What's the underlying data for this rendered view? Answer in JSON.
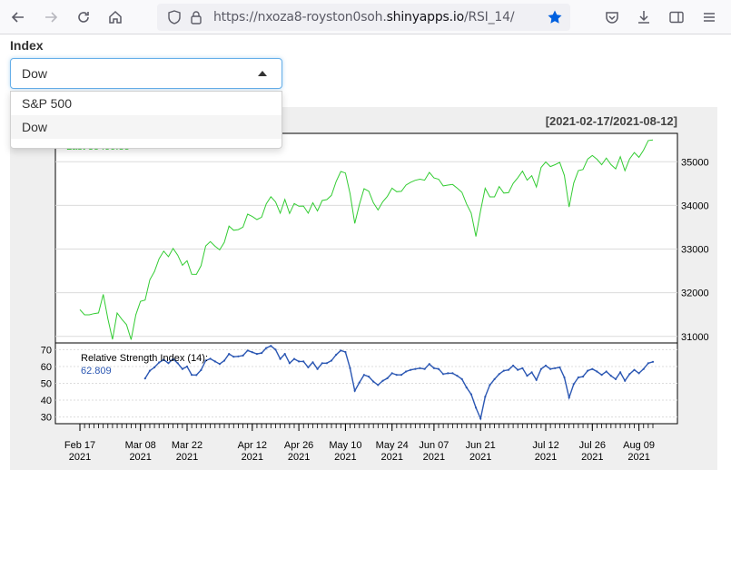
{
  "browser": {
    "url_prefix": "https://nxoza8-royston0soh.",
    "url_domain": "shinyapps.io",
    "url_path": "/RSI_14/"
  },
  "app": {
    "index_label": "Index",
    "selected": "Dow",
    "options": [
      "S&P 500",
      "Dow"
    ],
    "active_option": 1
  },
  "colors": {
    "price": "#33cc33",
    "rsi": "#2b57b3"
  },
  "chart_data": {
    "type": "line",
    "date_range_label": "[2021-02-17/2021-08-12]",
    "last_price_label": "Last 35499.85",
    "rsi_title": "Relative Strength Index (14):",
    "rsi_last": "62.809",
    "x_ticks": [
      {
        "d": "2021-02-17",
        "l1": "Feb 17",
        "l2": "2021"
      },
      {
        "d": "2021-03-08",
        "l1": "Mar 08",
        "l2": "2021"
      },
      {
        "d": "2021-03-22",
        "l1": "Mar 22",
        "l2": "2021"
      },
      {
        "d": "2021-04-12",
        "l1": "Apr 12",
        "l2": "2021"
      },
      {
        "d": "2021-04-26",
        "l1": "Apr 26",
        "l2": "2021"
      },
      {
        "d": "2021-05-10",
        "l1": "May 10",
        "l2": "2021"
      },
      {
        "d": "2021-05-24",
        "l1": "May 24",
        "l2": "2021"
      },
      {
        "d": "2021-06-07",
        "l1": "Jun 07",
        "l2": "2021"
      },
      {
        "d": "2021-06-21",
        "l1": "Jun 21",
        "l2": "2021"
      },
      {
        "d": "2021-07-12",
        "l1": "Jul 12",
        "l2": "2021"
      },
      {
        "d": "2021-07-26",
        "l1": "Jul 26",
        "l2": "2021"
      },
      {
        "d": "2021-08-09",
        "l1": "Aug 09",
        "l2": "2021"
      }
    ],
    "price_axis": {
      "ticks": [
        31000,
        32000,
        33000,
        34000,
        35000
      ],
      "ylim": [
        30850,
        35650
      ]
    },
    "rsi_axis": {
      "ticks": [
        30,
        40,
        50,
        60,
        70
      ],
      "ylim": [
        26,
        74
      ]
    },
    "price": [
      [
        "2021-02-17",
        31613
      ],
      [
        "2021-02-18",
        31494
      ],
      [
        "2021-02-19",
        31494
      ],
      [
        "2021-02-22",
        31522
      ],
      [
        "2021-02-23",
        31537
      ],
      [
        "2021-02-24",
        31962
      ],
      [
        "2021-02-25",
        31402
      ],
      [
        "2021-02-26",
        30932
      ],
      [
        "2021-03-01",
        31535
      ],
      [
        "2021-03-02",
        31392
      ],
      [
        "2021-03-03",
        31270
      ],
      [
        "2021-03-04",
        30924
      ],
      [
        "2021-03-05",
        31496
      ],
      [
        "2021-03-08",
        31802
      ],
      [
        "2021-03-09",
        31833
      ],
      [
        "2021-03-10",
        32297
      ],
      [
        "2021-03-11",
        32486
      ],
      [
        "2021-03-12",
        32779
      ],
      [
        "2021-03-15",
        32953
      ],
      [
        "2021-03-16",
        32826
      ],
      [
        "2021-03-17",
        33015
      ],
      [
        "2021-03-18",
        32862
      ],
      [
        "2021-03-19",
        32628
      ],
      [
        "2021-03-22",
        32732
      ],
      [
        "2021-03-23",
        32423
      ],
      [
        "2021-03-24",
        32420
      ],
      [
        "2021-03-25",
        32619
      ],
      [
        "2021-03-26",
        33072
      ],
      [
        "2021-03-29",
        33171
      ],
      [
        "2021-03-30",
        33066
      ],
      [
        "2021-03-31",
        32982
      ],
      [
        "2021-04-01",
        33153
      ],
      [
        "2021-04-05",
        33527
      ],
      [
        "2021-04-06",
        33430
      ],
      [
        "2021-04-07",
        33446
      ],
      [
        "2021-04-08",
        33503
      ],
      [
        "2021-04-09",
        33801
      ],
      [
        "2021-04-12",
        33746
      ],
      [
        "2021-04-13",
        33677
      ],
      [
        "2021-04-14",
        33730
      ],
      [
        "2021-04-15",
        34036
      ],
      [
        "2021-04-16",
        34200
      ],
      [
        "2021-04-19",
        34078
      ],
      [
        "2021-04-20",
        33821
      ],
      [
        "2021-04-21",
        34137
      ],
      [
        "2021-04-22",
        33815
      ],
      [
        "2021-04-23",
        34043
      ],
      [
        "2021-04-26",
        33982
      ],
      [
        "2021-04-27",
        33985
      ],
      [
        "2021-04-28",
        33821
      ],
      [
        "2021-04-29",
        34060
      ],
      [
        "2021-04-30",
        33874
      ],
      [
        "2021-05-03",
        34113
      ],
      [
        "2021-05-04",
        34133
      ],
      [
        "2021-05-05",
        34230
      ],
      [
        "2021-05-06",
        34548
      ],
      [
        "2021-05-07",
        34778
      ],
      [
        "2021-05-10",
        34742
      ],
      [
        "2021-05-11",
        34270
      ],
      [
        "2021-05-12",
        33587
      ],
      [
        "2021-05-13",
        34021
      ],
      [
        "2021-05-14",
        34382
      ],
      [
        "2021-05-17",
        34327
      ],
      [
        "2021-05-18",
        34060
      ],
      [
        "2021-05-19",
        33896
      ],
      [
        "2021-05-20",
        34084
      ],
      [
        "2021-05-21",
        34208
      ],
      [
        "2021-05-24",
        34394
      ],
      [
        "2021-05-25",
        34313
      ],
      [
        "2021-05-26",
        34323
      ],
      [
        "2021-05-27",
        34465
      ],
      [
        "2021-05-28",
        34529
      ],
      [
        "2021-06-01",
        34575
      ],
      [
        "2021-06-02",
        34600
      ],
      [
        "2021-06-03",
        34577
      ],
      [
        "2021-06-04",
        34756
      ],
      [
        "2021-06-07",
        34630
      ],
      [
        "2021-06-08",
        34600
      ],
      [
        "2021-06-09",
        34447
      ],
      [
        "2021-06-10",
        34466
      ],
      [
        "2021-06-11",
        34480
      ],
      [
        "2021-06-14",
        34394
      ],
      [
        "2021-06-15",
        34299
      ],
      [
        "2021-06-16",
        34033
      ],
      [
        "2021-06-17",
        33823
      ],
      [
        "2021-06-18",
        33290
      ],
      [
        "2021-06-21",
        33876
      ],
      [
        "2021-06-22",
        34393
      ],
      [
        "2021-06-23",
        34196
      ],
      [
        "2021-06-24",
        34196
      ],
      [
        "2021-06-25",
        34433
      ],
      [
        "2021-06-28",
        34283
      ],
      [
        "2021-06-29",
        34292
      ],
      [
        "2021-06-30",
        34502
      ],
      [
        "2021-07-01",
        34634
      ],
      [
        "2021-07-02",
        34786
      ],
      [
        "2021-07-06",
        34577
      ],
      [
        "2021-07-07",
        34681
      ],
      [
        "2021-07-08",
        34421
      ],
      [
        "2021-07-09",
        34870
      ],
      [
        "2021-07-12",
        34996
      ],
      [
        "2021-07-13",
        34889
      ],
      [
        "2021-07-14",
        34933
      ],
      [
        "2021-07-15",
        34987
      ],
      [
        "2021-07-16",
        34688
      ],
      [
        "2021-07-19",
        33962
      ],
      [
        "2021-07-20",
        34512
      ],
      [
        "2021-07-21",
        34798
      ],
      [
        "2021-07-22",
        34823
      ],
      [
        "2021-07-23",
        35062
      ],
      [
        "2021-07-26",
        35144
      ],
      [
        "2021-07-27",
        35058
      ],
      [
        "2021-07-28",
        34931
      ],
      [
        "2021-07-29",
        35085
      ],
      [
        "2021-07-30",
        34935
      ],
      [
        "2021-08-02",
        34838
      ],
      [
        "2021-08-03",
        35117
      ],
      [
        "2021-08-04",
        34793
      ],
      [
        "2021-08-05",
        35065
      ],
      [
        "2021-08-06",
        35209
      ],
      [
        "2021-08-09",
        35102
      ],
      [
        "2021-08-10",
        35265
      ],
      [
        "2021-08-11",
        35485
      ],
      [
        "2021-08-12",
        35500
      ]
    ],
    "rsi": [
      [
        "2021-03-09",
        52.9
      ],
      [
        "2021-03-10",
        57.5
      ],
      [
        "2021-03-11",
        59.5
      ],
      [
        "2021-03-12",
        62.4
      ],
      [
        "2021-03-15",
        64.0
      ],
      [
        "2021-03-16",
        62.0
      ],
      [
        "2021-03-17",
        64.5
      ],
      [
        "2021-03-18",
        62.0
      ],
      [
        "2021-03-19",
        58.5
      ],
      [
        "2021-03-22",
        60.0
      ],
      [
        "2021-03-23",
        55.0
      ],
      [
        "2021-03-24",
        54.9
      ],
      [
        "2021-03-25",
        57.9
      ],
      [
        "2021-03-26",
        63.5
      ],
      [
        "2021-03-29",
        64.6
      ],
      [
        "2021-03-30",
        63.0
      ],
      [
        "2021-03-31",
        61.5
      ],
      [
        "2021-04-01",
        63.5
      ],
      [
        "2021-04-05",
        67.5
      ],
      [
        "2021-04-06",
        65.8
      ],
      [
        "2021-04-07",
        66.0
      ],
      [
        "2021-04-08",
        66.5
      ],
      [
        "2021-04-09",
        69.5
      ],
      [
        "2021-04-12",
        68.5
      ],
      [
        "2021-04-13",
        67.5
      ],
      [
        "2021-04-14",
        68.0
      ],
      [
        "2021-04-15",
        71.0
      ],
      [
        "2021-04-16",
        72.3
      ],
      [
        "2021-04-19",
        70.0
      ],
      [
        "2021-04-20",
        64.5
      ],
      [
        "2021-04-21",
        67.5
      ],
      [
        "2021-04-22",
        62.0
      ],
      [
        "2021-04-23",
        64.5
      ],
      [
        "2021-04-26",
        63.0
      ],
      [
        "2021-04-27",
        63.0
      ],
      [
        "2021-04-28",
        59.5
      ],
      [
        "2021-04-29",
        62.5
      ],
      [
        "2021-04-30",
        58.5
      ],
      [
        "2021-05-03",
        62.0
      ],
      [
        "2021-05-04",
        62.0
      ],
      [
        "2021-05-05",
        63.5
      ],
      [
        "2021-05-06",
        67.0
      ],
      [
        "2021-05-07",
        69.5
      ],
      [
        "2021-05-10",
        68.6
      ],
      [
        "2021-05-11",
        59.0
      ],
      [
        "2021-05-12",
        45.5
      ],
      [
        "2021-05-13",
        50.5
      ],
      [
        "2021-05-14",
        55.0
      ],
      [
        "2021-05-17",
        54.0
      ],
      [
        "2021-05-18",
        51.0
      ],
      [
        "2021-05-19",
        49.0
      ],
      [
        "2021-05-20",
        51.5
      ],
      [
        "2021-05-21",
        53.0
      ],
      [
        "2021-05-24",
        56.0
      ],
      [
        "2021-05-25",
        55.0
      ],
      [
        "2021-05-26",
        55.0
      ],
      [
        "2021-05-27",
        57.0
      ],
      [
        "2021-05-28",
        58.0
      ],
      [
        "2021-06-01",
        58.5
      ],
      [
        "2021-06-02",
        59.0
      ],
      [
        "2021-06-03",
        58.5
      ],
      [
        "2021-06-04",
        61.5
      ],
      [
        "2021-06-07",
        59.0
      ],
      [
        "2021-06-08",
        58.5
      ],
      [
        "2021-06-09",
        55.5
      ],
      [
        "2021-06-10",
        56.0
      ],
      [
        "2021-06-11",
        56.0
      ],
      [
        "2021-06-14",
        54.5
      ],
      [
        "2021-06-15",
        52.5
      ],
      [
        "2021-06-16",
        47.5
      ],
      [
        "2021-06-17",
        43.5
      ],
      [
        "2021-06-18",
        35.5
      ],
      [
        "2021-06-21",
        29.0
      ],
      [
        "2021-06-22",
        42.0
      ],
      [
        "2021-06-23",
        49.0
      ],
      [
        "2021-06-24",
        52.5
      ],
      [
        "2021-06-25",
        55.5
      ],
      [
        "2021-06-28",
        57.5
      ],
      [
        "2021-06-29",
        58.0
      ],
      [
        "2021-06-30",
        60.5
      ],
      [
        "2021-07-01",
        58.0
      ],
      [
        "2021-07-02",
        59.0
      ],
      [
        "2021-07-06",
        54.5
      ],
      [
        "2021-07-07",
        56.5
      ],
      [
        "2021-07-08",
        52.0
      ],
      [
        "2021-07-09",
        58.5
      ],
      [
        "2021-07-12",
        60.5
      ],
      [
        "2021-07-13",
        58.5
      ],
      [
        "2021-07-14",
        59.0
      ],
      [
        "2021-07-15",
        59.5
      ],
      [
        "2021-07-16",
        53.5
      ],
      [
        "2021-07-19",
        41.5
      ],
      [
        "2021-07-20",
        49.5
      ],
      [
        "2021-07-21",
        53.5
      ],
      [
        "2021-07-22",
        54.0
      ],
      [
        "2021-07-23",
        57.5
      ],
      [
        "2021-07-26",
        58.5
      ],
      [
        "2021-07-27",
        57.0
      ],
      [
        "2021-07-28",
        55.0
      ],
      [
        "2021-07-29",
        57.0
      ],
      [
        "2021-07-30",
        54.5
      ],
      [
        "2021-08-02",
        52.5
      ],
      [
        "2021-08-03",
        56.5
      ],
      [
        "2021-08-04",
        51.5
      ],
      [
        "2021-08-05",
        55.5
      ],
      [
        "2021-08-06",
        58.0
      ],
      [
        "2021-08-09",
        56.0
      ],
      [
        "2021-08-10",
        58.5
      ],
      [
        "2021-08-11",
        62.0
      ],
      [
        "2021-08-12",
        62.8
      ]
    ]
  }
}
